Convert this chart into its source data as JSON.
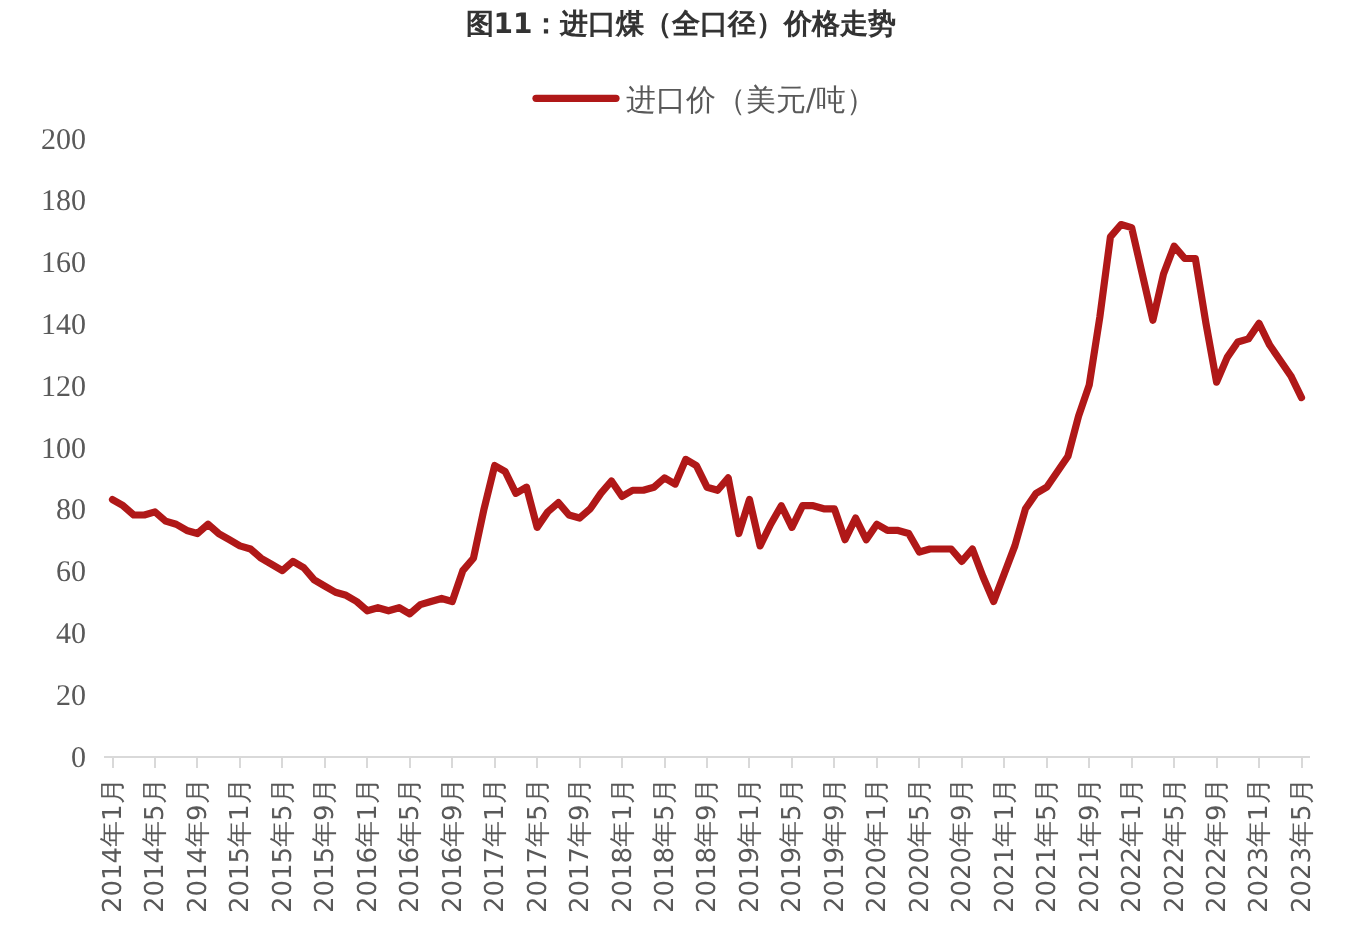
{
  "chart_data": {
    "type": "line",
    "title": "图11：进口煤（全口径）价格走势",
    "categories": [
      "2014年1月",
      null,
      null,
      null,
      "2014年5月",
      null,
      null,
      null,
      "2014年9月",
      null,
      null,
      null,
      "2015年1月",
      null,
      null,
      null,
      "2015年5月",
      null,
      null,
      null,
      "2015年9月",
      null,
      null,
      null,
      "2016年1月",
      null,
      null,
      null,
      "2016年5月",
      null,
      null,
      null,
      "2016年9月",
      null,
      null,
      null,
      "2017年1月",
      null,
      null,
      null,
      "2017年5月",
      null,
      null,
      null,
      "2017年9月",
      null,
      null,
      null,
      "2018年1月",
      null,
      null,
      null,
      "2018年5月",
      null,
      null,
      null,
      "2018年9月",
      null,
      null,
      null,
      "2019年1月",
      null,
      null,
      null,
      "2019年5月",
      null,
      null,
      null,
      "2019年9月",
      null,
      null,
      null,
      "2020年1月",
      null,
      null,
      null,
      "2020年5月",
      null,
      null,
      null,
      "2020年9月",
      null,
      null,
      null,
      "2021年1月",
      null,
      null,
      null,
      "2021年5月",
      null,
      null,
      null,
      "2021年9月",
      null,
      null,
      null,
      "2022年1月",
      null,
      null,
      null,
      "2022年5月",
      null,
      null,
      null,
      "2022年9月",
      null,
      null,
      null,
      "2023年1月",
      null,
      null,
      null,
      "2023年5月"
    ],
    "series": [
      {
        "name": "进口价（美元/吨）",
        "color": "#b01818",
        "values": [
          83,
          81,
          78,
          78,
          79,
          76,
          75,
          73,
          72,
          75,
          72,
          70,
          68,
          67,
          64,
          62,
          60,
          63,
          61,
          57,
          55,
          53,
          52,
          50,
          47,
          48,
          47,
          48,
          46,
          49,
          50,
          51,
          50,
          60,
          64,
          80,
          94,
          92,
          85,
          87,
          74,
          79,
          82,
          78,
          77,
          80,
          85,
          89,
          84,
          86,
          86,
          87,
          90,
          88,
          96,
          94,
          87,
          86,
          90,
          72,
          83,
          68,
          75,
          81,
          74,
          81,
          81,
          80,
          80,
          70,
          77,
          70,
          75,
          73,
          73,
          72,
          66,
          67,
          67,
          67,
          63,
          67,
          58,
          50,
          59,
          68,
          80,
          85,
          87,
          92,
          97,
          110,
          120,
          142,
          168,
          172,
          171,
          156,
          141,
          156,
          165,
          161,
          161,
          140,
          121,
          129,
          134,
          135,
          140,
          133,
          128,
          123,
          116
        ]
      }
    ],
    "ylim": [
      0,
      200
    ],
    "yticks": [
      0,
      20,
      40,
      60,
      80,
      100,
      120,
      140,
      160,
      180,
      200
    ],
    "grid": false,
    "legend": "top",
    "marker": "none",
    "line_style": "solid"
  }
}
